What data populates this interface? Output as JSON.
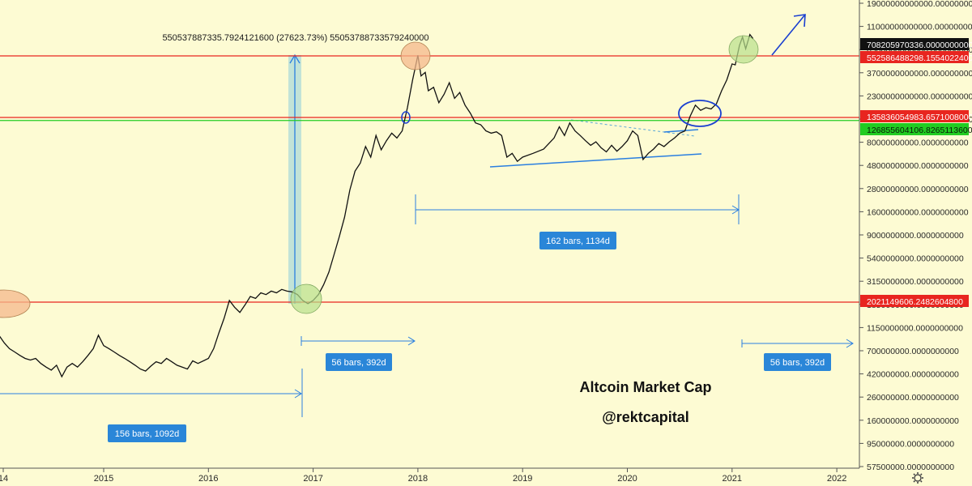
{
  "chart_data": {
    "type": "line",
    "title": "Altcoin Market Cap",
    "subtitle": "@rektcapital",
    "scale": "log",
    "grid": false,
    "y_ticks": [
      "19000000000000.0000000000",
      "11000000000000.0000000000",
      "6300000000000.0000000000",
      "3700000000000.0000000000",
      "2300000000000.0000000000",
      "1300000000000.0000000000",
      "80000000000.0000000000",
      "48000000000.0000000000",
      "28000000000.0000000000",
      "16000000000.0000000000",
      "9000000000.0000000000",
      "5400000000.0000000000",
      "3150000000.0000000000",
      "1850000000.0000000000",
      "1150000000.0000000000",
      "700000000.0000000000",
      "420000000.0000000000",
      "260000000.0000000000",
      "160000000.0000000000",
      "95000000.0000000000",
      "57500000.0000000000"
    ],
    "x_ticks": [
      "14",
      "2015",
      "2016",
      "2017",
      "2018",
      "2019",
      "2020",
      "2021",
      "2022"
    ],
    "price_tags": [
      {
        "label": "708205970336.0000000000",
        "color": "#111111"
      },
      {
        "label": "552586488298.1554022400",
        "color": "#e8251f"
      },
      {
        "label": "135836054983.6571008000",
        "color": "#e8251f"
      },
      {
        "label": "126855604106.8265113600",
        "color": "#22cc22"
      },
      {
        "label": "2021149606.2482604800",
        "color": "#e8251f"
      }
    ],
    "measure_boxes": [
      {
        "label": "156 bars, 1092d"
      },
      {
        "label": "56 bars, 392d"
      },
      {
        "label": "162 bars, 1134d"
      },
      {
        "label": "56 bars, 392d"
      }
    ],
    "top_annotation": "55053788733​5.7924121600 (27623.73%) 550537887335792400​00",
    "horizontal_levels": [
      {
        "value": 552586488298,
        "color": "#e8251f"
      },
      {
        "value": 135836054983,
        "color": "#e8251f"
      },
      {
        "value": 126855604106,
        "color": "#22cc22"
      },
      {
        "value": 2021149606,
        "color": "#e8251f"
      }
    ],
    "series": [
      {
        "values": [
          [
            2013.9,
            1000000000
          ],
          [
            2014.0,
            950000000
          ],
          [
            2014.05,
            800000000
          ],
          [
            2014.1,
            700000000
          ],
          [
            2014.15,
            650000000
          ],
          [
            2014.2,
            600000000
          ],
          [
            2014.25,
            560000000
          ],
          [
            2014.3,
            540000000
          ],
          [
            2014.35,
            560000000
          ],
          [
            2014.4,
            500000000
          ],
          [
            2014.45,
            460000000
          ],
          [
            2014.5,
            430000000
          ],
          [
            2014.55,
            480000000
          ],
          [
            2014.6,
            370000000
          ],
          [
            2014.65,
            460000000
          ],
          [
            2014.7,
            500000000
          ],
          [
            2014.75,
            460000000
          ],
          [
            2014.8,
            520000000
          ],
          [
            2014.85,
            600000000
          ],
          [
            2014.9,
            700000000
          ],
          [
            2014.95,
            950000000
          ],
          [
            2015.0,
            750000000
          ],
          [
            2015.05,
            700000000
          ],
          [
            2015.1,
            650000000
          ],
          [
            2015.15,
            600000000
          ],
          [
            2015.2,
            560000000
          ],
          [
            2015.25,
            520000000
          ],
          [
            2015.3,
            480000000
          ],
          [
            2015.35,
            440000000
          ],
          [
            2015.4,
            420000000
          ],
          [
            2015.45,
            470000000
          ],
          [
            2015.5,
            520000000
          ],
          [
            2015.55,
            500000000
          ],
          [
            2015.6,
            560000000
          ],
          [
            2015.65,
            520000000
          ],
          [
            2015.7,
            480000000
          ],
          [
            2015.75,
            460000000
          ],
          [
            2015.8,
            440000000
          ],
          [
            2015.85,
            530000000
          ],
          [
            2015.9,
            500000000
          ],
          [
            2016.0,
            560000000
          ],
          [
            2016.05,
            700000000
          ],
          [
            2016.1,
            1000000000
          ],
          [
            2016.15,
            1400000000
          ],
          [
            2016.2,
            2100000000
          ],
          [
            2016.25,
            1800000000
          ],
          [
            2016.3,
            1600000000
          ],
          [
            2016.35,
            1900000000
          ],
          [
            2016.4,
            2300000000
          ],
          [
            2016.45,
            2200000000
          ],
          [
            2016.5,
            2500000000
          ],
          [
            2016.55,
            2400000000
          ],
          [
            2016.6,
            2600000000
          ],
          [
            2016.65,
            2500000000
          ],
          [
            2016.7,
            2700000000
          ],
          [
            2016.75,
            2600000000
          ],
          [
            2016.8,
            2550000000
          ],
          [
            2016.85,
            2400000000
          ],
          [
            2016.9,
            2100000000
          ],
          [
            2016.95,
            1950000000
          ],
          [
            2017.0,
            2100000000
          ],
          [
            2017.05,
            2400000000
          ],
          [
            2017.1,
            3000000000
          ],
          [
            2017.15,
            4000000000
          ],
          [
            2017.2,
            6000000000
          ],
          [
            2017.25,
            9000000000
          ],
          [
            2017.3,
            14000000000
          ],
          [
            2017.35,
            26000000000
          ],
          [
            2017.4,
            40000000000
          ],
          [
            2017.45,
            48000000000
          ],
          [
            2017.5,
            70000000000
          ],
          [
            2017.55,
            55000000000
          ],
          [
            2017.6,
            90000000000
          ],
          [
            2017.65,
            65000000000
          ],
          [
            2017.7,
            80000000000
          ],
          [
            2017.75,
            95000000000
          ],
          [
            2017.8,
            85000000000
          ],
          [
            2017.85,
            100000000000
          ],
          [
            2017.9,
            170000000000
          ],
          [
            2017.95,
            320000000000
          ],
          [
            2018.0,
            560000000000
          ],
          [
            2018.03,
            350000000000
          ],
          [
            2018.07,
            380000000000
          ],
          [
            2018.1,
            250000000000
          ],
          [
            2018.15,
            270000000000
          ],
          [
            2018.2,
            190000000000
          ],
          [
            2018.25,
            230000000000
          ],
          [
            2018.3,
            300000000000
          ],
          [
            2018.35,
            210000000000
          ],
          [
            2018.4,
            240000000000
          ],
          [
            2018.45,
            180000000000
          ],
          [
            2018.5,
            150000000000
          ],
          [
            2018.55,
            120000000000
          ],
          [
            2018.6,
            115000000000
          ],
          [
            2018.65,
            100000000000
          ],
          [
            2018.7,
            95000000000
          ],
          [
            2018.75,
            98000000000
          ],
          [
            2018.8,
            90000000000
          ],
          [
            2018.85,
            55000000000
          ],
          [
            2018.9,
            60000000000
          ],
          [
            2018.95,
            50000000000
          ],
          [
            2019.0,
            55000000000
          ],
          [
            2019.1,
            60000000000
          ],
          [
            2019.2,
            66000000000
          ],
          [
            2019.3,
            85000000000
          ],
          [
            2019.35,
            110000000000
          ],
          [
            2019.4,
            90000000000
          ],
          [
            2019.45,
            120000000000
          ],
          [
            2019.5,
            100000000000
          ],
          [
            2019.55,
            90000000000
          ],
          [
            2019.6,
            80000000000
          ],
          [
            2019.65,
            72000000000
          ],
          [
            2019.7,
            78000000000
          ],
          [
            2019.75,
            68000000000
          ],
          [
            2019.8,
            62000000000
          ],
          [
            2019.85,
            72000000000
          ],
          [
            2019.9,
            63000000000
          ],
          [
            2019.95,
            70000000000
          ],
          [
            2020.0,
            80000000000
          ],
          [
            2020.05,
            100000000000
          ],
          [
            2020.1,
            90000000000
          ],
          [
            2020.15,
            52000000000
          ],
          [
            2020.2,
            60000000000
          ],
          [
            2020.25,
            66000000000
          ],
          [
            2020.3,
            75000000000
          ],
          [
            2020.35,
            70000000000
          ],
          [
            2020.4,
            78000000000
          ],
          [
            2020.45,
            85000000000
          ],
          [
            2020.5,
            95000000000
          ],
          [
            2020.55,
            100000000000
          ],
          [
            2020.6,
            140000000000
          ],
          [
            2020.65,
            180000000000
          ],
          [
            2020.7,
            160000000000
          ],
          [
            2020.75,
            170000000000
          ],
          [
            2020.8,
            165000000000
          ],
          [
            2020.85,
            185000000000
          ],
          [
            2020.9,
            250000000000
          ],
          [
            2020.95,
            320000000000
          ],
          [
            2021.0,
            460000000000
          ],
          [
            2021.03,
            450000000000
          ],
          [
            2021.07,
            700000000000
          ],
          [
            2021.1,
            850000000000
          ],
          [
            2021.13,
            650000000000
          ],
          [
            2021.17,
            900000000000
          ],
          [
            2021.2,
            820000000000
          ]
        ]
      }
    ]
  }
}
